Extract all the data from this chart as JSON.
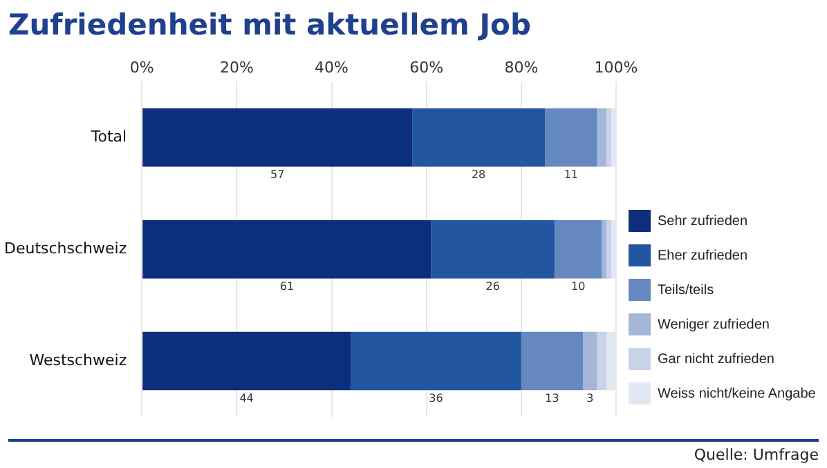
{
  "chart_data": {
    "type": "bar",
    "orientation": "horizontal",
    "stacked": true,
    "title": "Zufriedenheit mit aktuellem Job",
    "categories": [
      "Total",
      "Deutschschweiz",
      "Westschweiz"
    ],
    "series": [
      {
        "name": "Sehr zufrieden",
        "color": "#0d2e7a",
        "values": [
          57,
          61,
          44
        ],
        "value_labels": [
          "57",
          "61",
          "44"
        ]
      },
      {
        "name": "Eher zufrieden",
        "color": "#2257a0",
        "values": [
          28,
          26,
          36
        ],
        "value_labels": [
          "28",
          "26",
          "36"
        ]
      },
      {
        "name": "Teils/teils",
        "color": "#6688c0",
        "values": [
          11,
          10,
          13
        ],
        "value_labels": [
          "11",
          "10",
          "13"
        ]
      },
      {
        "name": "Weniger zufrieden",
        "color": "#a4b7d8",
        "values": [
          2,
          1,
          3
        ],
        "value_labels": [
          null,
          null,
          "3"
        ]
      },
      {
        "name": "Gar nicht zufrieden",
        "color": "#c8d4e8",
        "values": [
          1,
          1,
          2
        ],
        "value_labels": [
          null,
          null,
          null
        ]
      },
      {
        "name": "Weiss nicht/keine Angabe",
        "color": "#e2e8f2",
        "values": [
          1,
          1,
          2
        ],
        "value_labels": [
          null,
          null,
          null
        ]
      }
    ],
    "xlim": [
      0,
      100
    ],
    "xticks": [
      {
        "value": 0,
        "label": "0%"
      },
      {
        "value": 20,
        "label": "20%"
      },
      {
        "value": 40,
        "label": "40%"
      },
      {
        "value": 60,
        "label": "60%"
      },
      {
        "value": 80,
        "label": "80%"
      },
      {
        "value": 100,
        "label": "100%"
      }
    ],
    "grid": "x",
    "legend": "right",
    "annotations": [
      "Quelle: Umfrage"
    ]
  }
}
